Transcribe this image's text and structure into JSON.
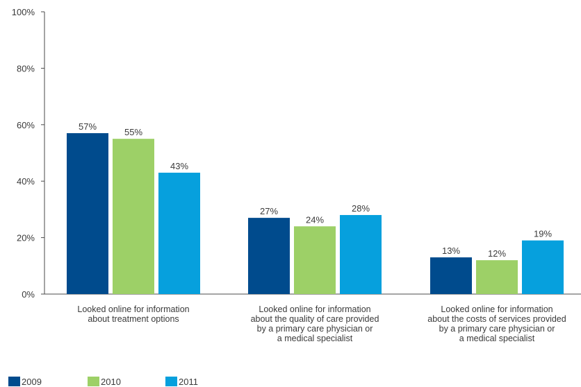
{
  "chart_data": {
    "type": "bar",
    "title": "",
    "xlabel": "",
    "ylabel": "",
    "ylim": [
      0,
      100
    ],
    "y_ticks": [
      "0%",
      "20%",
      "40%",
      "60%",
      "80%",
      "100%"
    ],
    "y_tick_values": [
      0,
      20,
      40,
      60,
      80,
      100
    ],
    "grid": false,
    "legend_position": "bottom-left",
    "categories": [
      [
        "Looked online for information",
        "about treatment options"
      ],
      [
        "Looked online for information",
        "about the quality of care provided",
        "by a primary care physician or",
        "a medical specialist"
      ],
      [
        "Looked online for information",
        "about the costs of services provided",
        "by a primary care physician or",
        "a medical specialist"
      ]
    ],
    "series": [
      {
        "name": "2009",
        "color": "#004b8d",
        "values": [
          57,
          27,
          13
        ],
        "labels": [
          "57%",
          "27%",
          "13%"
        ]
      },
      {
        "name": "2010",
        "color": "#9dd067",
        "values": [
          55,
          24,
          12
        ],
        "labels": [
          "55%",
          "24%",
          "12%"
        ]
      },
      {
        "name": "2011",
        "color": "#06a0dd",
        "values": [
          43,
          28,
          19
        ],
        "labels": [
          "43%",
          "28%",
          "19%"
        ]
      }
    ]
  }
}
